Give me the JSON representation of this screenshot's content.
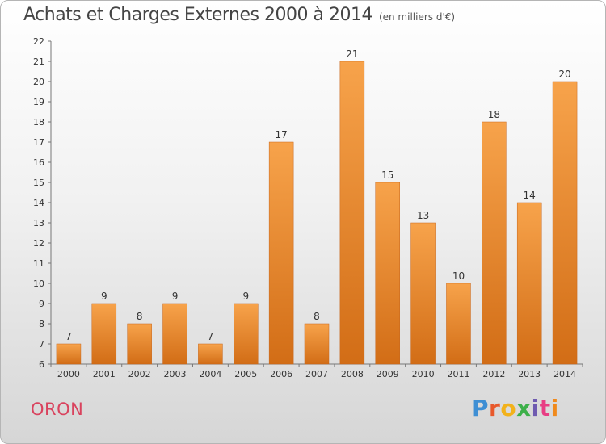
{
  "title": "Achats et Charges Externes 2000 à 2014",
  "subtitle": "(en milliers d'€)",
  "commune": "ORON",
  "logo": {
    "letters": [
      "P",
      "r",
      "o",
      "x",
      "i",
      "t",
      "i"
    ],
    "colors": [
      "#3f8fd4",
      "#e8592c",
      "#f2b21b",
      "#3db04a",
      "#6f5bb0",
      "#e83d84",
      "#f08a1c"
    ]
  },
  "colors": {
    "bar_top": "#f7a34b",
    "bar_bottom": "#d26d16",
    "bar_edge": "#c7651a"
  },
  "chart_data": {
    "type": "bar",
    "categories": [
      "2000",
      "2001",
      "2002",
      "2003",
      "2004",
      "2005",
      "2006",
      "2007",
      "2008",
      "2009",
      "2010",
      "2011",
      "2012",
      "2013",
      "2014"
    ],
    "values": [
      7,
      9,
      8,
      9,
      7,
      9,
      17,
      8,
      21,
      15,
      13,
      10,
      18,
      14,
      20
    ],
    "ylim": [
      6,
      22
    ],
    "yticks": [
      6,
      7,
      8,
      9,
      10,
      11,
      12,
      13,
      14,
      15,
      16,
      17,
      18,
      19,
      20,
      21,
      22
    ],
    "grid": false,
    "legend": "none"
  }
}
